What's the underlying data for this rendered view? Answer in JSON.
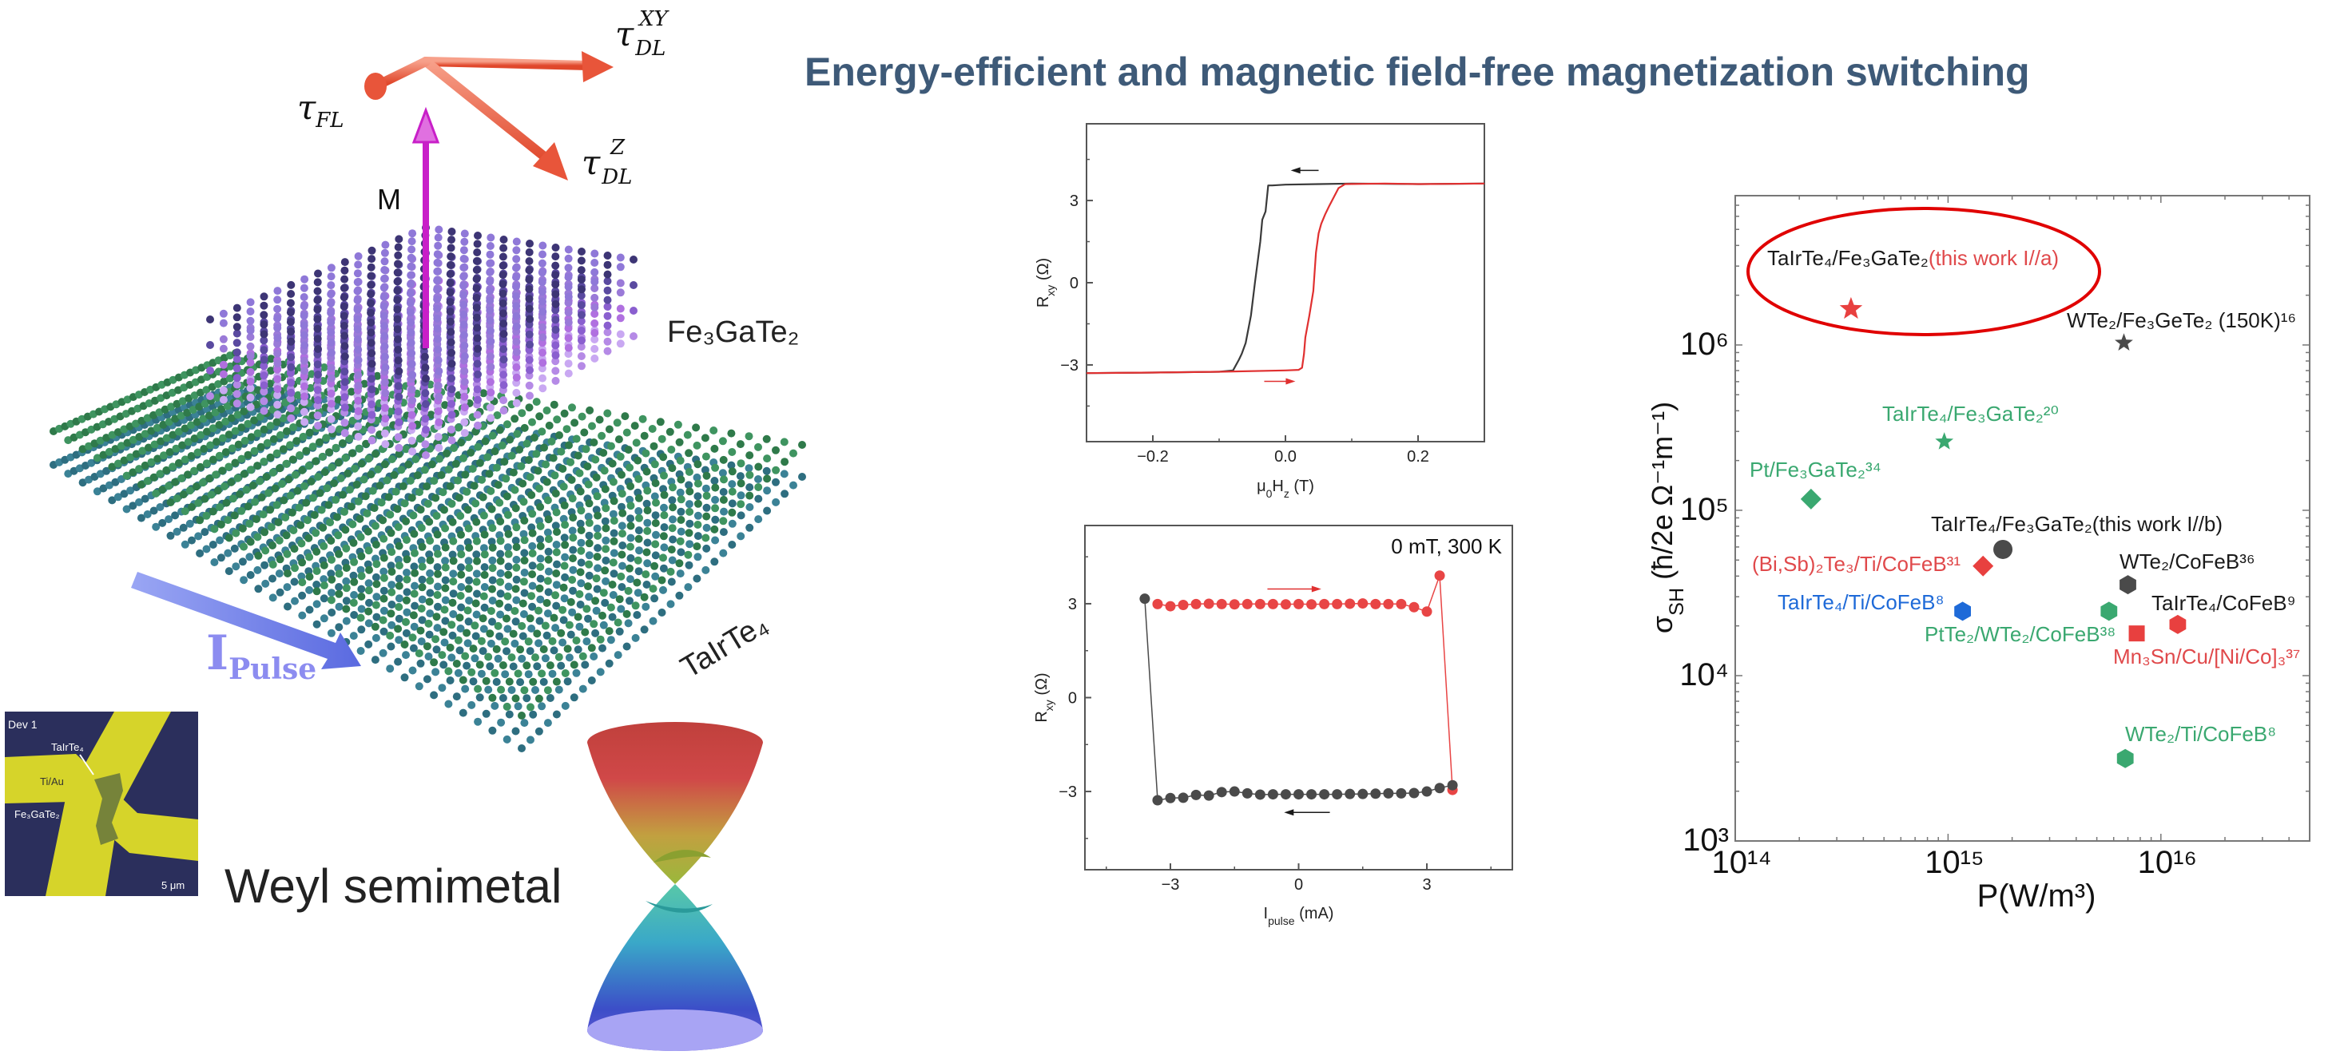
{
  "title": "Energy-efficient and magnetic field-free magnetization switching",
  "colors": {
    "title": "#3e5a78",
    "red": "#e8403f",
    "green": "#3aa870",
    "blue": "#1e6ad8",
    "dark": "#4a4a4a",
    "magnetization": "#c81fc8",
    "torque": "#ef6244",
    "current": "#8c8cf0"
  },
  "illustration": {
    "torque_fl": {
      "symbol": "τ",
      "sub": "FL"
    },
    "torque_dl_xy": {
      "symbol": "τ",
      "sub": "DL",
      "sup": "XY"
    },
    "torque_dl_z": {
      "symbol": "τ",
      "sub": "DL",
      "sup": "Z"
    },
    "magnetization_label": "M",
    "ferromagnet_label": "Fe₃GaTe₂",
    "wsm_label": "TaIrTe₄",
    "current_label": {
      "symbol": "I",
      "sub": "Pulse"
    }
  },
  "device_image": {
    "device": "Dev 1",
    "wsm": "TaIrTe₄",
    "electrode": "Ti/Au",
    "ferromagnet": "Fe₃GaTe₂",
    "scale_bar": "5 μm"
  },
  "weyl_caption": "Weyl semimetal",
  "chart_data": [
    {
      "type": "line",
      "xlabel": [
        {
          "text": "μ"
        },
        {
          "text": "0",
          "sub": true
        },
        {
          "text": "H"
        },
        {
          "text": "z",
          "sub": true
        },
        {
          "text": " (T)"
        }
      ],
      "ylabel": [
        {
          "text": "R"
        },
        {
          "text": "xy",
          "sub": true
        },
        {
          "text": " (Ω)"
        }
      ],
      "xlim": [
        -0.3,
        0.3
      ],
      "ylim": [
        -5.8,
        5.8
      ],
      "xticks": [
        -0.2,
        0.0,
        0.2
      ],
      "xtick_labels": [
        "−0.2",
        "0.0",
        "0.2"
      ],
      "xminor": [
        -0.1,
        0.1
      ],
      "yticks": [
        -3,
        0,
        3
      ],
      "ytick_labels": [
        "−3",
        "0",
        "3"
      ],
      "yminor": [
        -4.5,
        -1.5,
        1.5,
        4.5
      ],
      "grid": false,
      "series": [
        {
          "color": "#3a3a3a",
          "direction": "decreasing field",
          "x": [
            0.3,
            0.2,
            0.1,
            0.05,
            0.0,
            -0.02,
            -0.026,
            -0.03,
            -0.035,
            -0.038,
            -0.046,
            -0.052,
            -0.06,
            -0.066,
            -0.07,
            -0.079,
            -0.1,
            -0.2,
            -0.3
          ],
          "y": [
            3.62,
            3.6,
            3.62,
            3.6,
            3.58,
            3.55,
            3.55,
            2.6,
            2.3,
            1.5,
            0.0,
            -1.2,
            -2.2,
            -2.6,
            -2.8,
            -3.2,
            -3.25,
            -3.28,
            -3.3
          ]
        },
        {
          "color": "#e03030",
          "direction": "increasing field",
          "x": [
            -0.3,
            -0.2,
            -0.1,
            0.0,
            0.02,
            0.025,
            0.028,
            0.03,
            0.036,
            0.042,
            0.046,
            0.05,
            0.054,
            0.06,
            0.066,
            0.08,
            0.09,
            0.15,
            0.2,
            0.3
          ],
          "y": [
            -3.3,
            -3.28,
            -3.25,
            -3.2,
            -3.18,
            -3.1,
            -2.6,
            -2.0,
            -1.2,
            -0.3,
            1.1,
            1.8,
            2.15,
            2.5,
            2.8,
            3.45,
            3.6,
            3.62,
            3.6,
            3.62
          ]
        }
      ],
      "arrows": [
        {
          "color": "#1a1a1a",
          "x_from": 0.05,
          "x_to": 0.008,
          "y": 4.1
        },
        {
          "color": "#e03030",
          "x_from": -0.032,
          "x_to": 0.015,
          "y": -3.6
        }
      ]
    },
    {
      "type": "line",
      "annotation": "0 mT, 300 K",
      "xlabel": [
        {
          "text": "I"
        },
        {
          "text": "pulse",
          "sub": true
        },
        {
          "text": " (mA)"
        }
      ],
      "ylabel": [
        {
          "text": "R"
        },
        {
          "text": "xy",
          "sub": true
        },
        {
          "text": " (Ω)"
        }
      ],
      "xlim": [
        -5,
        5
      ],
      "ylim": [
        -5.5,
        5.5
      ],
      "xticks": [
        -3,
        0,
        3
      ],
      "xtick_labels": [
        "−3",
        "0",
        "3"
      ],
      "xminor": [
        -4.5,
        -1.5,
        1.5,
        4.5
      ],
      "yticks": [
        -3,
        0,
        3
      ],
      "ytick_labels": [
        "−3",
        "0",
        "3"
      ],
      "yminor": [
        -4.5,
        -1.5,
        1.5,
        4.5
      ],
      "grid": false,
      "series": [
        {
          "color": "#e84545",
          "direction": "increasing current",
          "x": [
            -3.3,
            -3.0,
            -2.7,
            -2.4,
            -2.1,
            -1.8,
            -1.5,
            -1.2,
            -0.9,
            -0.6,
            -0.3,
            0.0,
            0.3,
            0.6,
            0.9,
            1.2,
            1.5,
            1.8,
            2.1,
            2.4,
            2.7,
            3.0,
            3.3,
            3.6
          ],
          "y": [
            2.99,
            2.92,
            2.96,
            2.99,
            3.0,
            2.99,
            2.98,
            2.99,
            2.99,
            2.99,
            2.98,
            2.99,
            2.98,
            2.99,
            2.99,
            3.0,
            3.01,
            2.99,
            2.99,
            2.99,
            2.89,
            2.75,
            3.9,
            -2.95
          ]
        },
        {
          "color": "#4a4a4a",
          "direction": "decreasing current",
          "x": [
            3.6,
            3.3,
            3.0,
            2.7,
            2.4,
            2.1,
            1.8,
            1.5,
            1.2,
            0.9,
            0.6,
            0.3,
            0.0,
            -0.3,
            -0.6,
            -0.9,
            -1.2,
            -1.5,
            -1.8,
            -2.1,
            -2.4,
            -2.7,
            -3.0,
            -3.3,
            -3.6
          ],
          "y": [
            -2.8,
            -2.89,
            -3.0,
            -3.05,
            -3.06,
            -3.06,
            -3.07,
            -3.08,
            -3.08,
            -3.09,
            -3.09,
            -3.09,
            -3.09,
            -3.09,
            -3.09,
            -3.1,
            -3.06,
            -3.0,
            -3.02,
            -3.13,
            -3.11,
            -3.2,
            -3.21,
            -3.28,
            3.16
          ]
        }
      ],
      "arrows": [
        {
          "color": "#e03030",
          "x_from": -0.73,
          "x_to": 0.53,
          "y": 3.47
        },
        {
          "color": "#1a1a1a",
          "x_from": 0.73,
          "x_to": -0.34,
          "y": -3.67
        }
      ]
    },
    {
      "type": "scatter",
      "xscale": "log",
      "yscale": "log",
      "xlabel": [
        {
          "text": "P(W/m³)"
        }
      ],
      "ylabel": [
        {
          "text": "σ"
        },
        {
          "text": "SH",
          "sub": true
        },
        {
          "text": " (ħ/2e Ω⁻¹m⁻¹)"
        }
      ],
      "xlim": [
        100000000000000.0,
        5e+16
      ],
      "ylim": [
        1000.0,
        8000000.0
      ],
      "xticks": [
        100000000000000.0,
        1000000000000000.0,
        1e+16
      ],
      "xtick_labels": [
        "10¹⁴",
        "10¹⁵",
        "10¹⁶"
      ],
      "yticks": [
        1000.0,
        10000.0,
        100000.0,
        1000000.0
      ],
      "ytick_labels": [
        "10³",
        "10⁴",
        "10⁵",
        "10⁶"
      ],
      "grid": false,
      "highlight": "ellipse around this work I//a",
      "points": [
        {
          "label": "TaIrTe₄/Fe₃GaTe₂",
          "label_suffix": "(this work I//a)",
          "x": 350000000000000.0,
          "y": 1650000.0,
          "marker": "star",
          "color": "#e8403f",
          "label_color": "#1a1a1a",
          "suffix_color": "#e0494b"
        },
        {
          "label": "WTe₂/Fe₃GeTe₂ (150K)¹⁶",
          "x": 6700000000000000.0,
          "y": 1030000.0,
          "marker": "star",
          "color": "#4a4a4a",
          "label_color": "#1a1a1a"
        },
        {
          "label": "TaIrTe₄/Fe₃GaTe₂²⁰",
          "x": 960000000000000.0,
          "y": 260000.0,
          "marker": "star",
          "color": "#3aa870",
          "label_color": "#3aa870"
        },
        {
          "label": "Pt/Fe₃GaTe₂³⁴",
          "x": 227000000000000.0,
          "y": 117000.0,
          "marker": "diamond",
          "color": "#3aa870",
          "label_color": "#3aa870"
        },
        {
          "label": "TaIrTe₄/Fe₃GaTe₂(this work I//b)",
          "x": 1810000000000000.0,
          "y": 58000.0,
          "marker": "circle",
          "color": "#4a4a4a",
          "label_color": "#1a1a1a"
        },
        {
          "label": "(Bi,Sb)₂Te₃/Ti/CoFeB³¹",
          "x": 1460000000000000.0,
          "y": 46000.0,
          "marker": "diamond",
          "color": "#e8403f",
          "label_color": "#e0494b"
        },
        {
          "label": "TaIrTe₄/Ti/CoFeB⁸",
          "x": 1170000000000000.0,
          "y": 24500.0,
          "marker": "hexagon",
          "color": "#1e6ad8",
          "label_color": "#1e6ad8"
        },
        {
          "label": "PtTe₂/WTe₂/CoFeB³⁸",
          "x": 5700000000000000.0,
          "y": 24500.0,
          "marker": "hexagon",
          "color": "#3aa870",
          "label_color": "#3aa870"
        },
        {
          "label": "WTe₂/CoFeB³⁶",
          "x": 7000000000000000.0,
          "y": 35500.0,
          "marker": "hexagon",
          "color": "#4a4a4a",
          "label_color": "#1a1a1a"
        },
        {
          "label": "Mn₃Sn/Cu/[Ni/Co]₃³⁷",
          "x": 7700000000000000.0,
          "y": 18000.0,
          "marker": "square",
          "color": "#e8403f",
          "label_color": "#e0494b"
        },
        {
          "label": "TaIrTe₄/CoFeB⁹",
          "x": 1.2e+16,
          "y": 20400.0,
          "marker": "hexagon",
          "color": "#e8403f",
          "label_color": "#1a1a1a"
        },
        {
          "label": "WTe₂/Ti/CoFeB⁸",
          "x": 6800000000000000.0,
          "y": 3150.0,
          "marker": "hexagon",
          "color": "#3aa870",
          "label_color": "#3aa870"
        }
      ]
    }
  ]
}
